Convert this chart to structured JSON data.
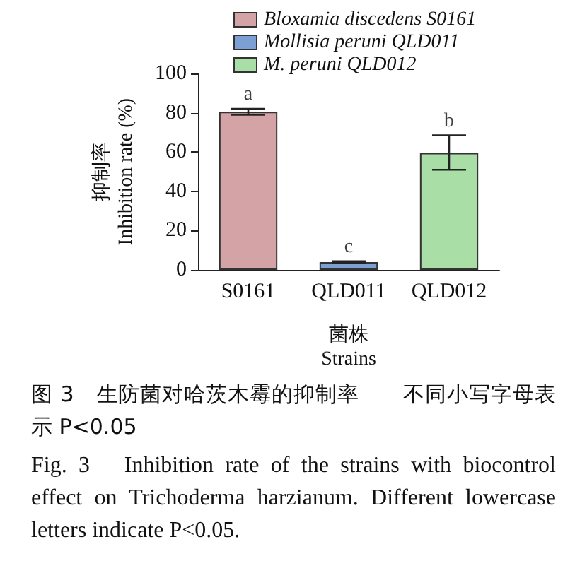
{
  "chart_data": {
    "type": "bar",
    "categories": [
      "S0161",
      "QLD011",
      "QLD012"
    ],
    "series": [
      {
        "name": "Bloxamia discedens S0161",
        "color": "#d4a3a6",
        "values": [
          80.5,
          null,
          null
        ],
        "errors": [
          1.5,
          null,
          null
        ]
      },
      {
        "name": "Mollisia peruni QLD011",
        "color": "#7c9fd4",
        "values": [
          null,
          4,
          null
        ],
        "errors": [
          null,
          0.4,
          null
        ]
      },
      {
        "name": "M. peruni QLD012",
        "color": "#a9dfa7",
        "values": [
          null,
          null,
          59.5
        ],
        "errors": [
          null,
          null,
          [
            51,
            68.5
          ]
        ]
      }
    ],
    "xlabel": "菌株\nStrains",
    "ylabel": "抑制率\nInhibition rate (%)",
    "ylim": [
      0,
      100
    ],
    "yticks": [
      0,
      20,
      40,
      60,
      80,
      100
    ],
    "grid": false,
    "legend": "top",
    "annotations": [
      {
        "text": "a",
        "x": "S0161",
        "y": 82
      },
      {
        "text": "c",
        "x": "QLD011",
        "y": 4.4
      },
      {
        "text": "b",
        "x": "QLD012",
        "y": 68.5
      },
      "图 3　生防菌对哈茨木霉的抑制率　　不同小写字母表示 P<0.05",
      "Fig. 3　Inhibition rate of the strains with biocontrol effect on Trichoderma harzianum. Different lowercase letters indicate P<0.05."
    ]
  }
}
